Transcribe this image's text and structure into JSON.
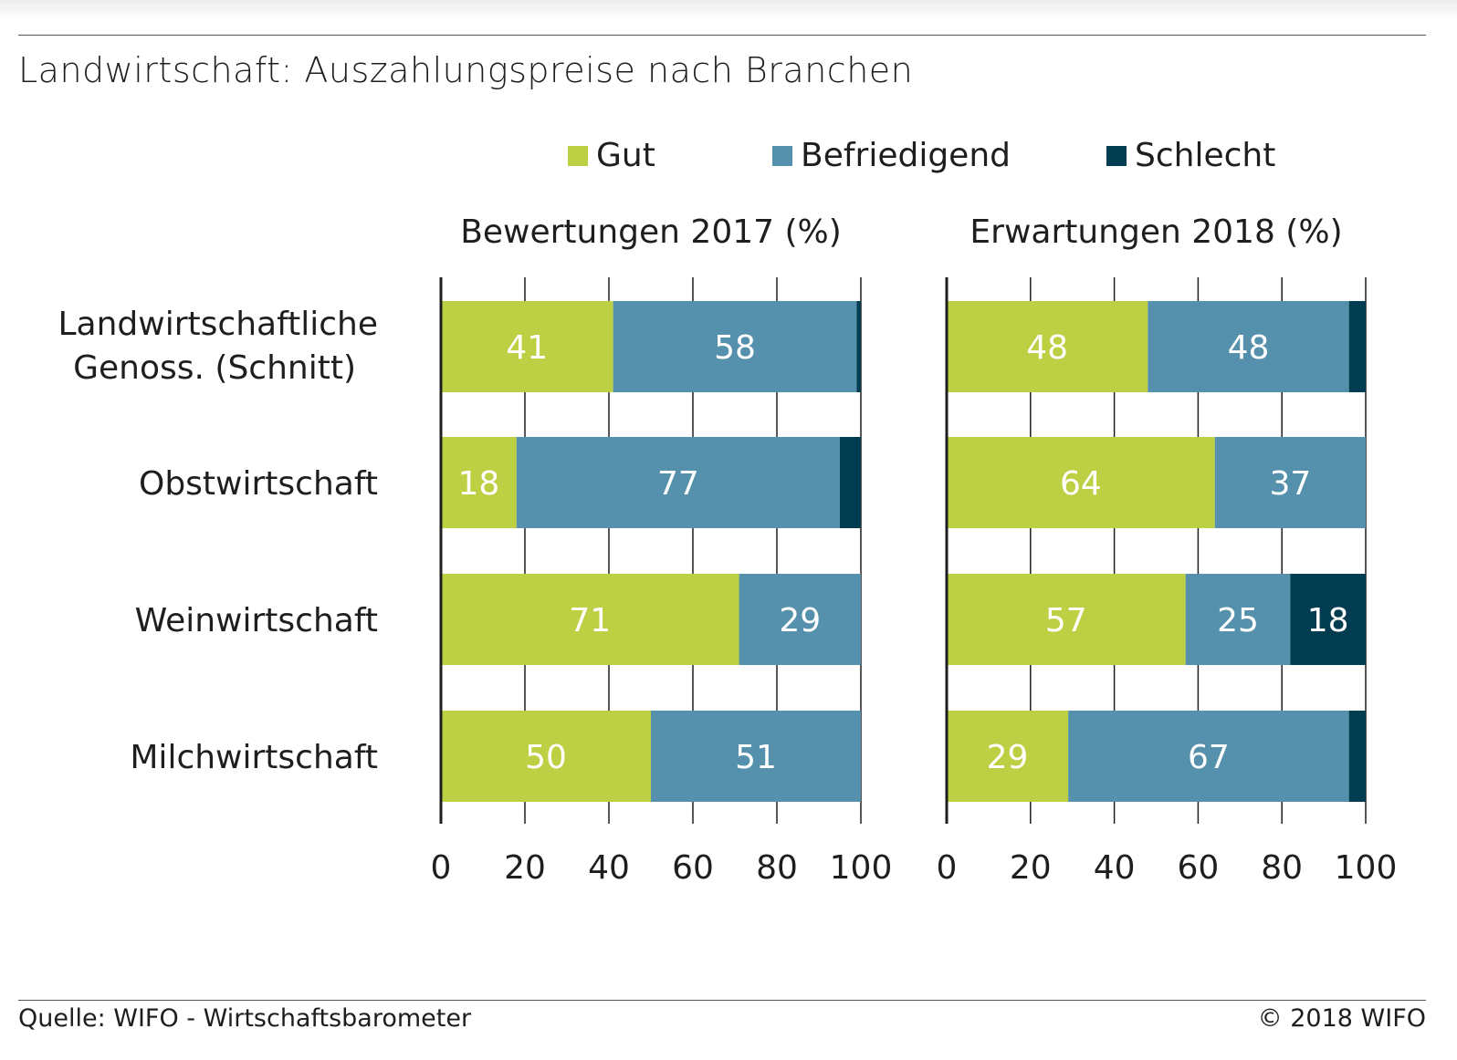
{
  "title": "Landwirtschaft: Auszahlungspreise nach Branchen",
  "footer": {
    "source": "Quelle: WIFO - Wirtschaftsbarometer",
    "copyright": "© 2018 WIFO"
  },
  "colors": {
    "Gut": "#bdd043",
    "Befriedigend": "#5591ac",
    "Schlecht": "#023c51"
  },
  "chart_data": {
    "type": "bar",
    "orientation": "horizontal",
    "stacked": true,
    "legend": {
      "position": "top",
      "entries": [
        "Gut",
        "Befriedigend",
        "Schlecht"
      ]
    },
    "categories": [
      "Landwirtschaftliche Genoss. (Schnitt)",
      "Obstwirtschaft",
      "Weinwirtschaft",
      "Milchwirtschaft"
    ],
    "xlim": [
      0,
      100
    ],
    "xticks": [
      0,
      20,
      40,
      60,
      80,
      100
    ],
    "grid": "vertical",
    "panels": [
      {
        "title": "Bewertungen 2017 (%)",
        "series": [
          {
            "name": "Gut",
            "values": [
              41,
              18,
              71,
              50
            ]
          },
          {
            "name": "Befriedigend",
            "values": [
              58,
              77,
              29,
              51
            ]
          },
          {
            "name": "Schlecht",
            "values": [
              2,
              5,
              0,
              0
            ]
          }
        ]
      },
      {
        "title": "Erwartungen 2018 (%)",
        "series": [
          {
            "name": "Gut",
            "values": [
              48,
              64,
              57,
              29
            ]
          },
          {
            "name": "Befriedigend",
            "values": [
              48,
              37,
              25,
              67
            ]
          },
          {
            "name": "Schlecht",
            "values": [
              5,
              0,
              18,
              4
            ]
          }
        ]
      }
    ]
  }
}
